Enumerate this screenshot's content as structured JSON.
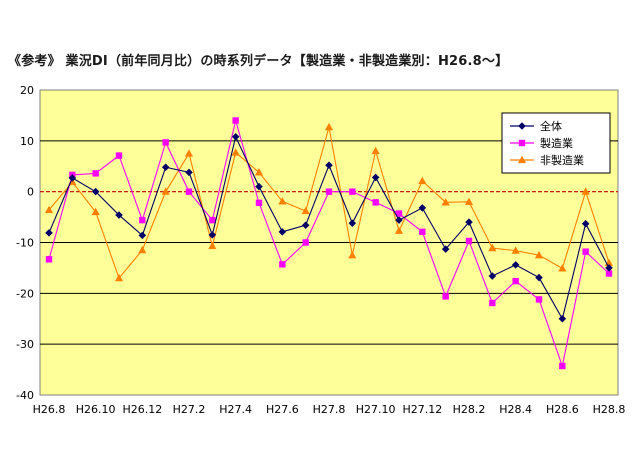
{
  "title": "《参考》 業況DI（前年同月比）の時系列データ【製造業・非製造業別：H26.8〜】",
  "chart_data": {
    "type": "line",
    "title": "《参考》 業況DI（前年同月比）の時系列データ【製造業・非製造業別：H26.8〜】",
    "xlabel": "",
    "ylabel": "",
    "ylim": [
      -40,
      20
    ],
    "yticks": [
      -40,
      -30,
      -20,
      -10,
      0,
      10,
      20
    ],
    "x": [
      "H26.8",
      "H26.9",
      "H26.10",
      "H26.11",
      "H26.12",
      "H27.1",
      "H27.2",
      "H27.3",
      "H27.4",
      "H27.5",
      "H27.6",
      "H27.7",
      "H27.8",
      "H27.9",
      "H27.10",
      "H27.11",
      "H27.12",
      "H28.1",
      "H28.2",
      "H28.3",
      "H28.4",
      "H28.5",
      "H28.6",
      "H28.7",
      "H28.8"
    ],
    "xtick_labels": [
      "H26.8",
      "H26.10",
      "H26.12",
      "H27.2",
      "H27.4",
      "H27.6",
      "H27.8",
      "H27.10",
      "H27.12",
      "H28.2",
      "H28.4",
      "H28.6",
      "H28.8"
    ],
    "grid": true,
    "legend_position": "top-right",
    "background_color": "#ffff99",
    "zero_line_color": "#c00000",
    "series": [
      {
        "name": "全体",
        "color": "#000066",
        "marker": "diamond",
        "values": [
          -8.1,
          2.7,
          0.0,
          -4.6,
          -8.6,
          4.8,
          3.8,
          -8.5,
          10.8,
          1.0,
          -7.9,
          -6.6,
          5.2,
          -6.2,
          2.8,
          -5.6,
          -3.2,
          -11.3,
          -6.0,
          -16.6,
          -14.4,
          -16.9,
          -25.0,
          -6.3,
          -15.0
        ]
      },
      {
        "name": "製造業",
        "color": "#ff00ff",
        "marker": "square",
        "values": [
          -13.3,
          3.3,
          3.6,
          7.1,
          -5.6,
          9.7,
          0.0,
          -5.6,
          14.0,
          -2.2,
          -14.3,
          -10.0,
          0.0,
          0.0,
          -2.1,
          -4.3,
          -7.9,
          -20.6,
          -9.7,
          -21.9,
          -17.6,
          -21.2,
          -34.3,
          -11.8,
          -16.1
        ]
      },
      {
        "name": "非製造業",
        "color": "#ff8000",
        "marker": "triangle",
        "values": [
          -3.6,
          1.9,
          -4.0,
          -17.0,
          -11.5,
          0.0,
          7.5,
          -10.7,
          7.7,
          3.8,
          -1.9,
          -3.8,
          12.7,
          -12.5,
          8.0,
          -7.7,
          2.1,
          -2.1,
          -2.0,
          -11.1,
          -11.6,
          -12.5,
          -15.1,
          0.0,
          -14.0
        ]
      }
    ]
  }
}
